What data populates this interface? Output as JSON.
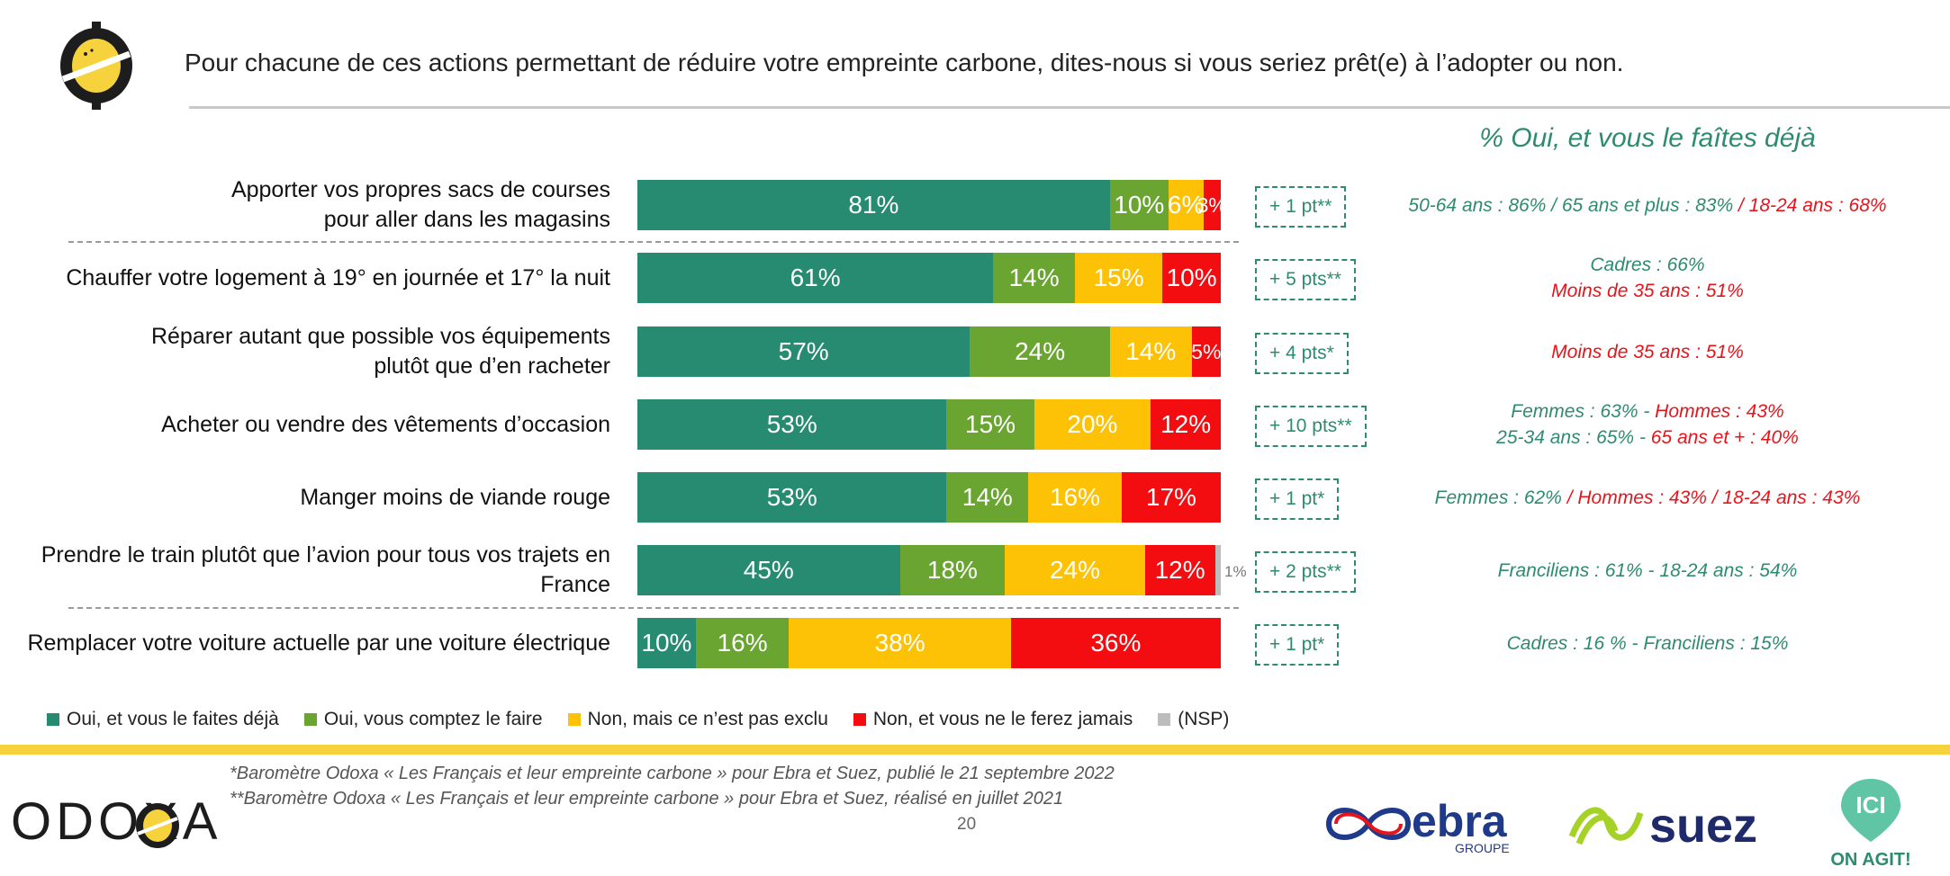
{
  "header": {
    "title": "Pour chacune de ces actions permettant de réduire votre empreinte carbone, dites-nous si vous seriez prêt(e) à l’adopter ou non.",
    "right_header": "% Oui, et vous le faîtes déjà"
  },
  "colors": {
    "deja": "#268b71",
    "compte": "#6aa532",
    "pas_exclu": "#fdc106",
    "jamais": "#f30c10",
    "nsp": "#bdbdbd",
    "accent_green": "#2e8b6f",
    "accent_red": "#e8141c",
    "band_yellow": "#f6d33c"
  },
  "chart_data": {
    "type": "bar",
    "orientation": "horizontal-stacked-100",
    "series_names": [
      "Oui, et vous le faites déjà",
      "Oui, vous comptez le faire",
      "Non, mais ce n’est pas exclu",
      "Non, et vous ne le ferez jamais",
      "(NSP)"
    ],
    "rows": [
      {
        "label_lines": [
          "Apporter vos propres sacs de courses",
          "pour aller dans les magasins"
        ],
        "values": [
          81,
          10,
          6,
          3,
          0
        ],
        "labels": [
          "81%",
          "10%",
          "6%",
          "3%",
          ""
        ],
        "delta": "+ 1 pt**",
        "note": [
          [
            {
              "t": "50-64 ans : 86% / 65 ans et plus : 83% ",
              "c": "g"
            },
            {
              "t": "/ 18-24 ans : 68%",
              "c": "r"
            }
          ]
        ]
      },
      {
        "label_lines": [
          "Chauffer votre logement à 19° en journée et 17° la nuit"
        ],
        "values": [
          61,
          14,
          15,
          10,
          0
        ],
        "labels": [
          "61%",
          "14%",
          "15%",
          "10%",
          ""
        ],
        "delta": "+ 5 pts**",
        "note": [
          [
            {
              "t": "Cadres : 66%",
              "c": "g"
            }
          ],
          [
            {
              "t": "Moins de 35 ans : 51%",
              "c": "r"
            }
          ]
        ]
      },
      {
        "label_lines": [
          "Réparer autant que possible vos équipements",
          "plutôt que d’en racheter"
        ],
        "values": [
          57,
          24,
          14,
          5,
          0
        ],
        "labels": [
          "57%",
          "24%",
          "14%",
          "5%",
          ""
        ],
        "delta": "+ 4 pts*",
        "note": [
          [
            {
              "t": "Moins de 35 ans : 51%",
              "c": "r"
            }
          ]
        ]
      },
      {
        "label_lines": [
          "Acheter ou vendre des vêtements d’occasion"
        ],
        "values": [
          53,
          15,
          20,
          12,
          0
        ],
        "labels": [
          "53%",
          "15%",
          "20%",
          "12%",
          ""
        ],
        "delta": "+ 10 pts**",
        "note": [
          [
            {
              "t": "Femmes : 63% - ",
              "c": "g"
            },
            {
              "t": "Hommes : 43%",
              "c": "r"
            }
          ],
          [
            {
              "t": "25-34 ans : 65% - ",
              "c": "g"
            },
            {
              "t": "65 ans et + : 40%",
              "c": "r"
            }
          ]
        ]
      },
      {
        "label_lines": [
          "Manger moins de viande rouge"
        ],
        "values": [
          53,
          14,
          16,
          17,
          0
        ],
        "labels": [
          "53%",
          "14%",
          "16%",
          "17%",
          ""
        ],
        "delta": "+ 1 pt*",
        "note": [
          [
            {
              "t": "Femmes : 62% ",
              "c": "g"
            },
            {
              "t": "/ Hommes : 43% / 18-24 ans : 43%",
              "c": "r"
            }
          ]
        ]
      },
      {
        "label_lines": [
          "Prendre le train plutôt que l’avion pour tous vos trajets en",
          "France"
        ],
        "values": [
          45,
          18,
          24,
          12,
          1
        ],
        "labels": [
          "45%",
          "18%",
          "24%",
          "12%",
          "1%"
        ],
        "delta": "+ 2 pts**",
        "note": [
          [
            {
              "t": "Franciliens : 61% - 18-24 ans : 54%",
              "c": "g"
            }
          ]
        ]
      },
      {
        "label_lines": [
          "Remplacer votre voiture actuelle par une voiture électrique"
        ],
        "values": [
          10,
          16,
          38,
          36,
          0
        ],
        "labels": [
          "10%",
          "16%",
          "38%",
          "36%",
          ""
        ],
        "delta": "+ 1 pt*",
        "note": [
          [
            {
              "t": "Cadres : 16 % - Franciliens : 15%",
              "c": "g"
            }
          ]
        ]
      }
    ]
  },
  "legend": [
    {
      "label": "Oui, et vous le faites déjà",
      "color_key": "deja"
    },
    {
      "label": "Oui, vous comptez le faire",
      "color_key": "compte"
    },
    {
      "label": "Non, mais ce n’est pas exclu",
      "color_key": "pas_exclu"
    },
    {
      "label": "Non, et vous ne le ferez jamais",
      "color_key": "jamais"
    },
    {
      "label": "(NSP)",
      "color_key": "nsp"
    }
  ],
  "footer": {
    "brand": "ODOXA",
    "footnote1": "*Baromètre Odoxa « Les Français et leur empreinte carbone » pour Ebra et Suez, publié le 21 septembre 2022",
    "footnote2": "**Baromètre Odoxa « Les Français et leur empreinte carbone » pour Ebra et Suez, réalisé en juillet 2021",
    "page_number": "20",
    "partner1": "ebra",
    "partner1_sub": "GROUPE",
    "partner2": "suez",
    "partner3_top": "ICI",
    "partner3_bottom": "ON AGIT!"
  }
}
